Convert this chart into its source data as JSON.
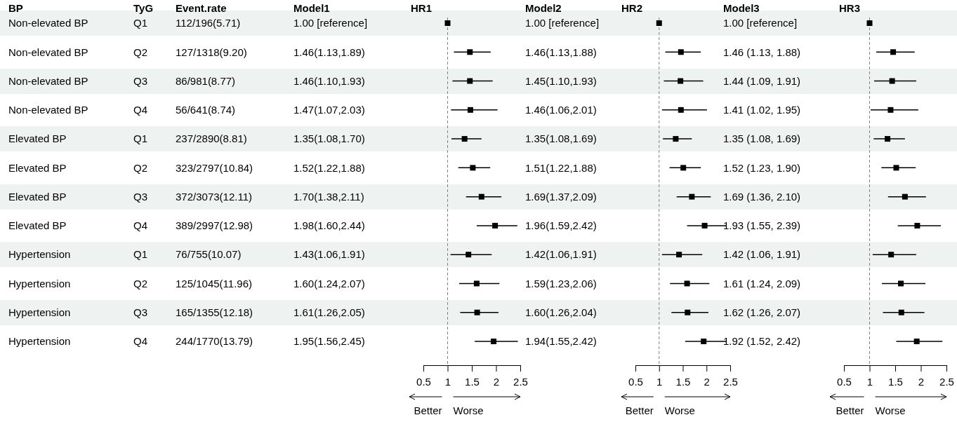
{
  "chart_data": [
    {
      "type": "other",
      "annotations": [
        "BP",
        "TyG",
        "Event.rate",
        "Non-elevated BP",
        "Q1",
        "112/196(5.71)",
        "Non-elevated BP",
        "Q2",
        "127/1318(9.20)",
        "Non-elevated BP",
        "Q3",
        "86/981(8.77)",
        "Non-elevated BP",
        "Q4",
        "56/641(8.74)",
        "Elevated BP",
        "Q1",
        "237/2890(8.81)",
        "Elevated BP",
        "Q2",
        "323/2797(10.84)",
        "Elevated BP",
        "Q3",
        "372/3073(12.11)",
        "Elevated BP",
        "Q4",
        "389/2997(12.98)",
        "Hypertension",
        "Q1",
        "76/755(10.07)",
        "Hypertension",
        "Q2",
        "125/1045(11.96)",
        "Hypertension",
        "Q3",
        "165/1355(12.18)",
        "Hypertension",
        "Q4",
        "244/1770(13.79)"
      ]
    },
    {
      "type": "scatter",
      "orientation": "horizontal",
      "title": "HR1",
      "annotations": [
        "Model1",
        "Better",
        "Worse"
      ],
      "marker": "square",
      "color": "#000000",
      "tick_labels": "x",
      "categories": [
        null,
        null,
        null,
        null,
        null,
        null,
        null,
        null,
        null,
        null,
        null,
        null
      ],
      "values": [
        1.0,
        1.46,
        1.46,
        1.47,
        1.35,
        1.52,
        1.7,
        1.98,
        1.43,
        1.6,
        1.61,
        1.95
      ],
      "errors": [
        null,
        [
          1.13,
          1.89
        ],
        [
          1.1,
          1.93
        ],
        [
          1.07,
          2.03
        ],
        [
          1.08,
          1.7
        ],
        [
          1.22,
          1.88
        ],
        [
          1.38,
          2.11
        ],
        [
          1.6,
          2.44
        ],
        [
          1.06,
          1.91
        ],
        [
          1.24,
          2.07
        ],
        [
          1.26,
          2.05
        ],
        [
          1.56,
          2.45
        ]
      ],
      "value_labels": [
        "1.00 [reference]",
        "1.46(1.13,1.89)",
        "1.46(1.10,1.93)",
        "1.47(1.07,2.03)",
        "1.35(1.08,1.70)",
        "1.52(1.22,1.88)",
        "1.70(1.38,2.11)",
        "1.98(1.60,2.44)",
        "1.43(1.06,1.91)",
        "1.60(1.24,2.07)",
        "1.61(1.26,2.05)",
        "1.95(1.56,2.45)"
      ],
      "xlim": [
        0.5,
        2.5
      ],
      "xticks": [
        0.5,
        1,
        1.5,
        2,
        2.5
      ],
      "ref_lines": [
        {
          "axis": "x",
          "value": 1,
          "line_style": "dashed",
          "color": "#808080"
        }
      ]
    },
    {
      "type": "scatter",
      "orientation": "horizontal",
      "title": "HR2",
      "annotations": [
        "Model2",
        "Better",
        "Worse"
      ],
      "marker": "square",
      "color": "#000000",
      "tick_labels": "x",
      "categories": [
        null,
        null,
        null,
        null,
        null,
        null,
        null,
        null,
        null,
        null,
        null,
        null
      ],
      "values": [
        1.0,
        1.46,
        1.45,
        1.46,
        1.35,
        1.51,
        1.69,
        1.96,
        1.42,
        1.59,
        1.6,
        1.94
      ],
      "errors": [
        null,
        [
          1.13,
          1.88
        ],
        [
          1.1,
          1.93
        ],
        [
          1.06,
          2.01
        ],
        [
          1.08,
          1.69
        ],
        [
          1.22,
          1.88
        ],
        [
          1.37,
          2.09
        ],
        [
          1.59,
          2.42
        ],
        [
          1.06,
          1.91
        ],
        [
          1.23,
          2.06
        ],
        [
          1.26,
          2.04
        ],
        [
          1.55,
          2.42
        ]
      ],
      "value_labels": [
        "1.00 [reference]",
        "1.46(1.13,1.88)",
        "1.45(1.10,1.93)",
        "1.46(1.06,2.01)",
        "1.35(1.08,1.69)",
        "1.51(1.22,1.88)",
        "1.69(1.37,2.09)",
        "1.96(1.59,2.42)",
        "1.42(1.06,1.91)",
        "1.59(1.23,2.06)",
        "1.60(1.26,2.04)",
        "1.94(1.55,2.42)"
      ],
      "xlim": [
        0.5,
        2.5
      ],
      "xticks": [
        0.5,
        1,
        1.5,
        2,
        2.5
      ],
      "ref_lines": [
        {
          "axis": "x",
          "value": 1,
          "line_style": "dashed",
          "color": "#808080"
        }
      ]
    },
    {
      "type": "scatter",
      "orientation": "horizontal",
      "title": "HR3",
      "annotations": [
        "Model3",
        "Better",
        "Worse"
      ],
      "marker": "square",
      "color": "#000000",
      "tick_labels": "x",
      "categories": [
        null,
        null,
        null,
        null,
        null,
        null,
        null,
        null,
        null,
        null,
        null,
        null
      ],
      "values": [
        1.0,
        1.46,
        1.44,
        1.41,
        1.35,
        1.52,
        1.69,
        1.93,
        1.42,
        1.61,
        1.62,
        1.92
      ],
      "errors": [
        null,
        [
          1.13,
          1.88
        ],
        [
          1.09,
          1.91
        ],
        [
          1.02,
          1.95
        ],
        [
          1.08,
          1.69
        ],
        [
          1.23,
          1.9
        ],
        [
          1.36,
          2.1
        ],
        [
          1.55,
          2.39
        ],
        [
          1.06,
          1.91
        ],
        [
          1.24,
          2.09
        ],
        [
          1.26,
          2.07
        ],
        [
          1.52,
          2.42
        ]
      ],
      "value_labels": [
        "1.00 [reference]",
        "1.46 (1.13, 1.88)",
        "1.44 (1.09, 1.91)",
        "1.41 (1.02, 1.95)",
        "1.35 (1.08, 1.69)",
        "1.52 (1.23, 1.90)",
        "1.69 (1.36, 2.10)",
        "1.93 (1.55, 2.39)",
        "1.42 (1.06, 1.91)",
        "1.61 (1.24, 2.09)",
        "1.62 (1.26, 2.07)",
        "1.92 (1.52, 2.42)"
      ],
      "xlim": [
        0.5,
        2.5
      ],
      "xticks": [
        0.5,
        1,
        1.5,
        2,
        2.5
      ],
      "ref_lines": [
        {
          "axis": "x",
          "value": 1,
          "line_style": "dashed",
          "color": "#808080"
        }
      ]
    }
  ]
}
